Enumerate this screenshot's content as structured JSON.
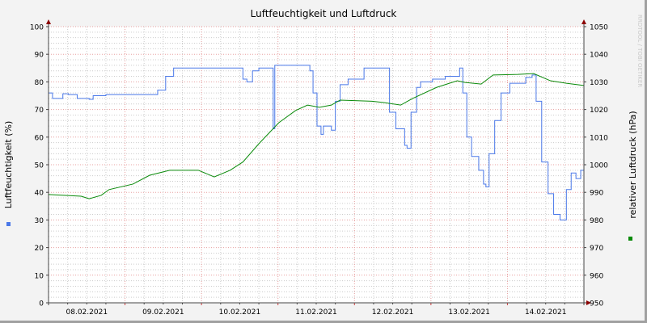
{
  "chart_data": {
    "type": "line",
    "title": "Luftfeuchtigkeit und Luftdruck",
    "ylabel": "Luftfeuchtigkeit (%)",
    "y2label": "relativer Luftdruck (hPa)",
    "watermark": "RRDTOOL / TOBI OETIKER",
    "xlim": [
      "2021-02-08T00:00",
      "2021-02-15T00:00"
    ],
    "ylim": [
      0,
      100
    ],
    "y2lim": [
      950,
      1050
    ],
    "yticks": [
      "0",
      "10",
      "20",
      "30",
      "40",
      "50",
      "60",
      "70",
      "80",
      "90",
      "100"
    ],
    "y2ticks": [
      "950",
      "960",
      "970",
      "980",
      "990",
      "1000",
      "1010",
      "1020",
      "1030",
      "1040",
      "1050"
    ],
    "xticks": [
      {
        "label": "08.02.2021",
        "at": "2021-02-08T12:00"
      },
      {
        "label": "09.02.2021",
        "at": "2021-02-09T12:00"
      },
      {
        "label": "10.02.2021",
        "at": "2021-02-10T12:00"
      },
      {
        "label": "11.02.2021",
        "at": "2021-02-11T12:00"
      },
      {
        "label": "12.02.2021",
        "at": "2021-02-12T12:00"
      },
      {
        "label": "13.02.2021",
        "at": "2021-02-13T12:00"
      },
      {
        "label": "14.02.2021",
        "at": "2021-02-14T12:00"
      }
    ],
    "grid": true,
    "legend": "color markers beside axis labels",
    "colors": {
      "humidity": "#4a78e8",
      "pressure": "#0a8a0a",
      "background": "#f3f3f3",
      "plot": "#ffffff",
      "major_grid": "#e8a0a0",
      "minor_grid": "#cccccc"
    },
    "series": [
      {
        "axis": "left",
        "color": "#4a78e8",
        "points": [
          [
            "2021-02-08T00:00",
            76
          ],
          [
            "2021-02-08T01:15",
            74
          ],
          [
            "2021-02-08T04:00",
            74
          ],
          [
            "2021-02-08T04:30",
            75.7
          ],
          [
            "2021-02-08T06:15",
            75.4
          ],
          [
            "2021-02-08T09:00",
            74
          ],
          [
            "2021-02-08T12:45",
            73.7
          ],
          [
            "2021-02-08T14:00",
            75
          ],
          [
            "2021-02-08T18:00",
            75.4
          ],
          [
            "2021-02-08T23:00",
            75.4
          ],
          [
            "2021-02-09T06:30",
            75.4
          ],
          [
            "2021-02-09T10:15",
            77
          ],
          [
            "2021-02-09T12:45",
            82
          ],
          [
            "2021-02-09T15:15",
            85
          ],
          [
            "2021-02-10T11:30",
            85
          ],
          [
            "2021-02-10T13:00",
            81
          ],
          [
            "2021-02-10T14:15",
            80
          ],
          [
            "2021-02-10T16:00",
            84
          ],
          [
            "2021-02-10T18:00",
            85
          ],
          [
            "2021-02-10T22:00",
            85
          ],
          [
            "2021-02-10T22:30",
            63
          ],
          [
            "2021-02-10T23:00",
            86
          ],
          [
            "2021-02-11T09:15",
            86
          ],
          [
            "2021-02-11T10:00",
            84
          ],
          [
            "2021-02-11T11:00",
            76
          ],
          [
            "2021-02-11T12:15",
            64
          ],
          [
            "2021-02-11T13:30",
            61
          ],
          [
            "2021-02-11T14:15",
            64
          ],
          [
            "2021-02-11T16:45",
            62.5
          ],
          [
            "2021-02-11T18:00",
            73
          ],
          [
            "2021-02-11T19:30",
            79
          ],
          [
            "2021-02-11T22:00",
            81
          ],
          [
            "2021-02-12T03:00",
            85
          ],
          [
            "2021-02-12T10:00",
            85
          ],
          [
            "2021-02-12T11:00",
            69
          ],
          [
            "2021-02-12T13:00",
            63
          ],
          [
            "2021-02-12T15:45",
            57
          ],
          [
            "2021-02-12T16:30",
            56
          ],
          [
            "2021-02-12T17:45",
            69
          ],
          [
            "2021-02-12T19:30",
            78
          ],
          [
            "2021-02-12T20:45",
            80
          ],
          [
            "2021-02-13T00:30",
            81
          ],
          [
            "2021-02-13T04:30",
            82
          ],
          [
            "2021-02-13T09:00",
            85
          ],
          [
            "2021-02-13T10:00",
            76
          ],
          [
            "2021-02-13T11:15",
            60
          ],
          [
            "2021-02-13T12:45",
            53
          ],
          [
            "2021-02-13T15:00",
            48
          ],
          [
            "2021-02-13T16:30",
            43
          ],
          [
            "2021-02-13T17:15",
            42
          ],
          [
            "2021-02-13T18:15",
            54
          ],
          [
            "2021-02-13T20:00",
            66
          ],
          [
            "2021-02-13T22:00",
            76
          ],
          [
            "2021-02-14T00:45",
            79.5
          ],
          [
            "2021-02-14T05:45",
            81.6
          ],
          [
            "2021-02-14T07:45",
            82.5
          ],
          [
            "2021-02-14T09:00",
            73
          ],
          [
            "2021-02-14T10:45",
            51
          ],
          [
            "2021-02-14T12:45",
            39.5
          ],
          [
            "2021-02-14T14:30",
            32
          ],
          [
            "2021-02-14T16:30",
            30
          ],
          [
            "2021-02-14T18:30",
            41
          ],
          [
            "2021-02-14T20:00",
            47
          ],
          [
            "2021-02-14T21:30",
            45
          ],
          [
            "2021-02-14T23:00",
            48
          ],
          [
            "2021-02-15T00:00",
            55
          ]
        ]
      },
      {
        "axis": "right",
        "color": "#0a8a0a",
        "points": [
          [
            "2021-02-08T00:00",
            989.2
          ],
          [
            "2021-02-08T10:15",
            988.6
          ],
          [
            "2021-02-08T12:45",
            987.7
          ],
          [
            "2021-02-08T16:30",
            988.9
          ],
          [
            "2021-02-08T19:00",
            991
          ],
          [
            "2021-02-09T02:30",
            993
          ],
          [
            "2021-02-09T07:45",
            996.2
          ],
          [
            "2021-02-09T14:00",
            998
          ],
          [
            "2021-02-09T23:00",
            998
          ],
          [
            "2021-02-10T04:00",
            995.6
          ],
          [
            "2021-02-10T09:00",
            998
          ],
          [
            "2021-02-10T13:00",
            1001
          ],
          [
            "2021-02-10T18:00",
            1007.6
          ],
          [
            "2021-02-11T00:15",
            1015.2
          ],
          [
            "2021-02-11T05:30",
            1019.6
          ],
          [
            "2021-02-11T09:15",
            1021.6
          ],
          [
            "2021-02-11T13:00",
            1020.8
          ],
          [
            "2021-02-11T16:45",
            1021.6
          ],
          [
            "2021-02-11T19:30",
            1023.4
          ],
          [
            "2021-02-12T05:30",
            1023
          ],
          [
            "2021-02-12T09:15",
            1022.5
          ],
          [
            "2021-02-12T14:30",
            1021.6
          ],
          [
            "2021-02-12T18:15",
            1024
          ],
          [
            "2021-02-13T01:45",
            1028
          ],
          [
            "2021-02-13T08:15",
            1030.4
          ],
          [
            "2021-02-13T10:45",
            1029.8
          ],
          [
            "2021-02-13T15:45",
            1029.2
          ],
          [
            "2021-02-13T19:30",
            1032.5
          ],
          [
            "2021-02-14T03:15",
            1032.7
          ],
          [
            "2021-02-14T08:15",
            1033
          ],
          [
            "2021-02-14T13:30",
            1030.4
          ],
          [
            "2021-02-14T18:30",
            1029.5
          ],
          [
            "2021-02-15T00:00",
            1028.7
          ]
        ]
      }
    ]
  }
}
